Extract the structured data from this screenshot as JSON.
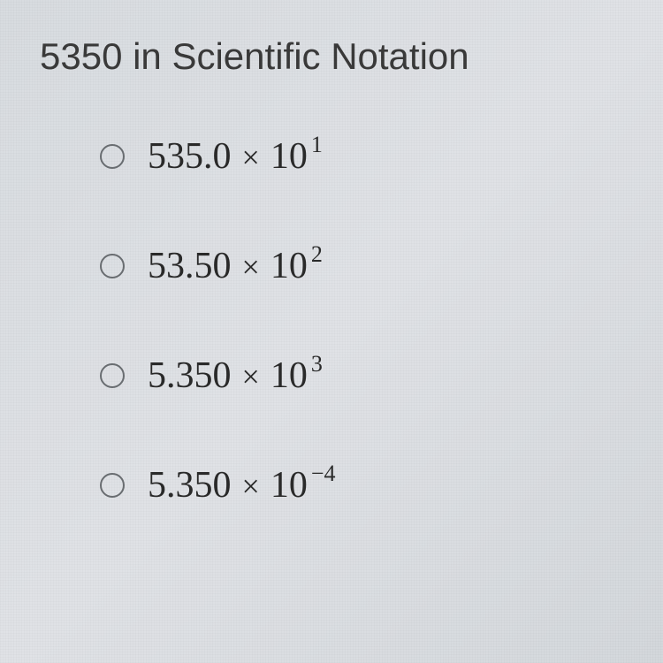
{
  "question": {
    "title": "5350 in Scientific Notation"
  },
  "options": [
    {
      "coefficient": "535.0",
      "multiply": "×",
      "base": "10",
      "exponent": "1"
    },
    {
      "coefficient": "53.50",
      "multiply": "×",
      "base": "10",
      "exponent": "2"
    },
    {
      "coefficient": "5.350",
      "multiply": "×",
      "base": "10",
      "exponent": "3"
    },
    {
      "coefficient": "5.350",
      "multiply": "×",
      "base": "10",
      "exponent": "−4"
    }
  ],
  "styling": {
    "background_color": "#dde0e4",
    "text_color": "#2a2a2a",
    "title_fontsize": 42,
    "option_fontsize": 42,
    "exponent_fontsize": 26,
    "radio_border_color": "#6a6e72",
    "radio_size": 28,
    "font_family_title": "Arial",
    "font_family_math": "Times New Roman"
  }
}
